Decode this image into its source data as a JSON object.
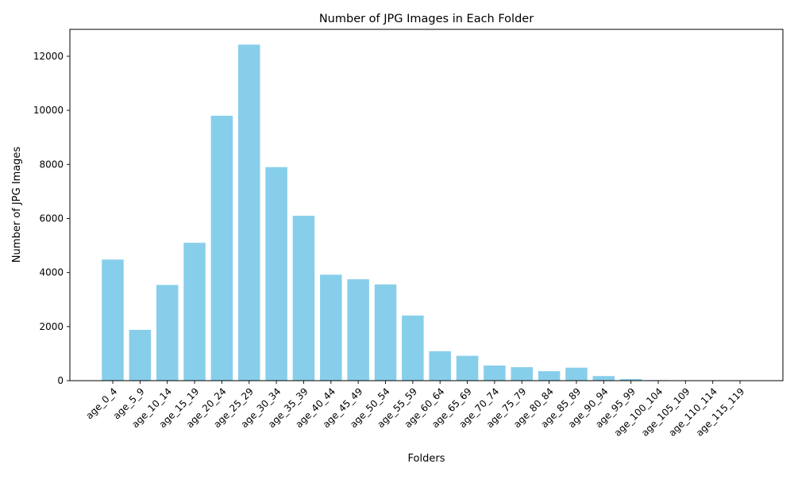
{
  "chart_data": {
    "type": "bar",
    "title": "Number of JPG Images in Each Folder",
    "xlabel": "Folders",
    "ylabel": "Number of JPG Images",
    "categories": [
      "age_0_4",
      "age_5_9",
      "age_10_14",
      "age_15_19",
      "age_20_24",
      "age_25_29",
      "age_30_34",
      "age_35_39",
      "age_40_44",
      "age_45_49",
      "age_50_54",
      "age_55_59",
      "age_60_64",
      "age_65_69",
      "age_70_74",
      "age_75_79",
      "age_80_84",
      "age_85_89",
      "age_90_94",
      "age_95_99",
      "age_100_104",
      "age_105_109",
      "age_110_114",
      "age_115_119"
    ],
    "values": [
      4480,
      1880,
      3540,
      5100,
      9800,
      12430,
      7900,
      6100,
      3920,
      3750,
      3560,
      2410,
      1090,
      920,
      560,
      500,
      350,
      480,
      170,
      60,
      20,
      5,
      3,
      2
    ],
    "ylim": [
      0,
      12996
    ],
    "yticks": [
      0,
      2000,
      4000,
      6000,
      8000,
      10000,
      12000
    ],
    "bar_color": "#87CEEB",
    "grid": false,
    "legend": false
  }
}
